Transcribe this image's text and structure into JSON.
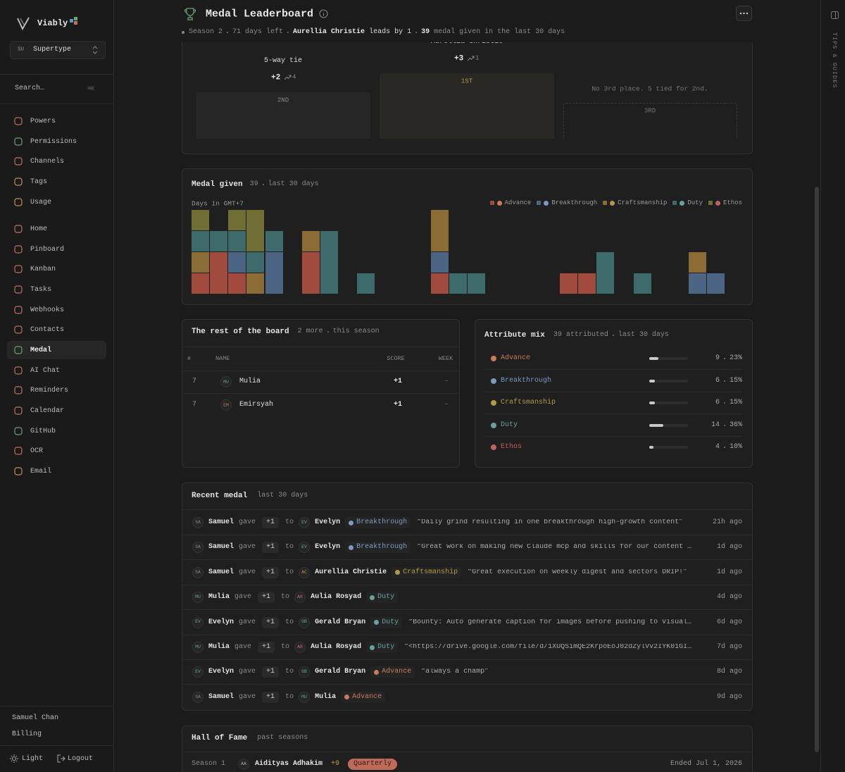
{
  "sidebar": {
    "brand": "Viably",
    "workspace": {
      "initials": "SU",
      "name": "Supertype"
    },
    "search": {
      "placeholder": "Search…",
      "shortcut": "⌘K"
    },
    "nav_primary": [
      {
        "label": "Powers",
        "icon_color": "#c0705a"
      },
      {
        "label": "Permissions",
        "icon_color": "#6aa07a"
      },
      {
        "label": "Channels",
        "icon_color": "#c0705a"
      },
      {
        "label": "Tags",
        "icon_color": "#c09050"
      },
      {
        "label": "Usage",
        "icon_color": "#c09050"
      }
    ],
    "nav_secondary": [
      {
        "label": "Home",
        "icon_color": "#c0705a"
      },
      {
        "label": "Pinboard",
        "icon_color": "#c0705a"
      },
      {
        "label": "Kanban",
        "icon_color": "#c0705a"
      },
      {
        "label": "Tasks",
        "icon_color": "#c0705a"
      },
      {
        "label": "Webhooks",
        "icon_color": "#c0705a"
      },
      {
        "label": "Contacts",
        "icon_color": "#c0705a"
      },
      {
        "label": "Medal",
        "icon_color": "#6aa07a",
        "active": true
      },
      {
        "label": "AI Chat",
        "icon_color": "#c0705a"
      },
      {
        "label": "Reminders",
        "icon_color": "#c0705a"
      },
      {
        "label": "Calendar",
        "icon_color": "#c0705a"
      },
      {
        "label": "GitHub",
        "icon_color": "#6aa07a"
      },
      {
        "label": "OCR",
        "icon_color": "#c0705a"
      },
      {
        "label": "Email",
        "icon_color": "#c09050"
      }
    ],
    "user": "Samuel Chan",
    "billing": "Billing",
    "theme": "Light",
    "logout": "Logout"
  },
  "header": {
    "title": "Medal Leaderboard",
    "season": "Season 2",
    "days_left": "71 days left",
    "leader": "Aurellia Christie",
    "lead": "leads by 1",
    "given_count": 39,
    "given_text": "medal given in the last 30 days"
  },
  "tips": "TIPS & GUIDES",
  "podium": {
    "second": {
      "name": "5-way tie",
      "score": "+2",
      "trend": 4,
      "label": "2ND"
    },
    "first": {
      "name": "Aurellia Christie",
      "score": "+3",
      "trend": 1,
      "label": "1ST"
    },
    "third": {
      "note": "No 3rd place. 5 tied for 2nd.",
      "label": "3RD"
    }
  },
  "medal_chart": {
    "type": "bar",
    "stacked": true,
    "title": "Medal given",
    "count": 39,
    "period": "last 30 days",
    "x_label": "Days in GMT+7",
    "categories": [
      null,
      null,
      null,
      null,
      null,
      null,
      null,
      null,
      null,
      null,
      null,
      null,
      null,
      null,
      null,
      null,
      null,
      null,
      null,
      null,
      null,
      null,
      null,
      null,
      null,
      null,
      null,
      null,
      null,
      null
    ],
    "series": [
      {
        "name": "Advance",
        "color": "#a14a3e",
        "values": [
          1,
          2,
          1,
          0,
          0,
          0,
          2,
          0,
          0,
          0,
          0,
          0,
          0,
          1,
          0,
          0,
          0,
          0,
          0,
          0,
          1,
          1,
          0,
          0,
          0,
          0,
          0,
          0,
          0,
          0
        ]
      },
      {
        "name": "Breakthrough",
        "color": "#4d6585",
        "values": [
          0,
          0,
          1,
          0,
          2,
          0,
          0,
          0,
          0,
          0,
          0,
          0,
          0,
          1,
          0,
          0,
          0,
          0,
          0,
          0,
          0,
          0,
          0,
          0,
          0,
          0,
          0,
          1,
          1,
          0
        ]
      },
      {
        "name": "Craftsmanship",
        "color": "#8a6c34",
        "values": [
          1,
          0,
          0,
          1,
          0,
          0,
          1,
          0,
          0,
          0,
          0,
          0,
          0,
          2,
          0,
          0,
          0,
          0,
          0,
          0,
          0,
          0,
          0,
          0,
          0,
          0,
          0,
          1,
          0,
          0
        ]
      },
      {
        "name": "Duty",
        "color": "#3d6a6a",
        "values": [
          1,
          1,
          1,
          1,
          1,
          0,
          0,
          3,
          0,
          1,
          0,
          0,
          0,
          0,
          1,
          1,
          0,
          0,
          0,
          0,
          0,
          0,
          2,
          0,
          1,
          0,
          0,
          0,
          0,
          0
        ]
      },
      {
        "name": "Ethos",
        "color": "#6f6f35",
        "values": [
          1,
          0,
          1,
          2,
          0,
          0,
          0,
          0,
          0,
          0,
          0,
          0,
          0,
          0,
          0,
          0,
          0,
          0,
          0,
          0,
          0,
          0,
          0,
          0,
          0,
          0,
          0,
          0,
          0,
          0
        ]
      }
    ]
  },
  "rest": {
    "title": "The rest of the board",
    "more": "2 more",
    "scope": "this season",
    "columns": [
      "#",
      "NAME",
      "SCORE",
      "WEEK"
    ],
    "rows": [
      {
        "rank": "7",
        "initials": "MU",
        "name": "Mulia",
        "score": "+1",
        "week": "–",
        "color": "#6aa07a"
      },
      {
        "rank": "7",
        "initials": "EM",
        "name": "Emirsyah",
        "score": "+1",
        "week": "–",
        "color": "#c0705a"
      }
    ]
  },
  "mix": {
    "title": "Attribute mix",
    "attributed": 39,
    "attributed_text": "attributed",
    "period": "last 30 days",
    "rows": [
      {
        "name": "Advance",
        "count": 9,
        "share": "23%",
        "color": "#c77b5a"
      },
      {
        "name": "Breakthrough",
        "count": 6,
        "share": "15%",
        "color": "#7a9ac0"
      },
      {
        "name": "Craftsmanship",
        "count": 6,
        "share": "15%",
        "color": "#b09a45"
      },
      {
        "name": "Duty",
        "count": 14,
        "share": "36%",
        "color": "#6aa0a0"
      },
      {
        "name": "Ethos",
        "count": 4,
        "share": "10%",
        "color": "#c06060"
      }
    ]
  },
  "recent": {
    "title": "Recent medal",
    "period": "last 30 days",
    "rows": [
      {
        "from": {
          "initials": "SA",
          "name": "Samuel",
          "color": "#888"
        },
        "action": "gave",
        "points": "+1",
        "to_word": "to",
        "to": {
          "initials": "EV",
          "name": "Evelyn",
          "color": "#6aa0a0"
        },
        "attribute": "Breakthrough",
        "quote": "“Daily grind resulting in one breakthrough high-growth content”",
        "time": "21h ago"
      },
      {
        "from": {
          "initials": "SA",
          "name": "Samuel",
          "color": "#888"
        },
        "action": "gave",
        "points": "+1",
        "to_word": "to",
        "to": {
          "initials": "EV",
          "name": "Evelyn",
          "color": "#6aa0a0"
        },
        "attribute": "Breakthrough",
        "quote": "“Great work on making new Claude mcp and skills for our content …",
        "time": "1d ago"
      },
      {
        "from": {
          "initials": "SA",
          "name": "Samuel",
          "color": "#888"
        },
        "action": "gave",
        "points": "+1",
        "to_word": "to",
        "to": {
          "initials": "AC",
          "name": "Aurellia Christie",
          "color": "#c09050"
        },
        "attribute": "Craftsmanship",
        "quote": "“Great execution on weekly digest and sectors DRIP!”",
        "time": "1d ago"
      },
      {
        "from": {
          "initials": "MU",
          "name": "Mulia",
          "color": "#6aa07a"
        },
        "action": "gave",
        "points": "+1",
        "to_word": "to",
        "to": {
          "initials": "AR",
          "name": "Aulia Rosyad",
          "color": "#c06a7a"
        },
        "attribute": "Duty",
        "time": "4d ago"
      },
      {
        "from": {
          "initials": "EV",
          "name": "Evelyn",
          "color": "#6aa0a0"
        },
        "action": "gave",
        "points": "+1",
        "to_word": "to",
        "to": {
          "initials": "GB",
          "name": "Gerald Bryan",
          "color": "#6aa07a"
        },
        "attribute": "Duty",
        "quote": "“Bounty: Auto generate caption for images before pushing to visual…",
        "time": "6d ago"
      },
      {
        "from": {
          "initials": "MU",
          "name": "Mulia",
          "color": "#6aa07a"
        },
        "action": "gave",
        "points": "+1",
        "to_word": "to",
        "to": {
          "initials": "AR",
          "name": "Aulia Rosyad",
          "color": "#c06a7a"
        },
        "attribute": "Duty",
        "quote": "“<https://drive.google.com/file/d/1XUQSimQE2KrpoEoJ02dZylVv2IYK01GI…",
        "time": "7d ago"
      },
      {
        "from": {
          "initials": "EV",
          "name": "Evelyn",
          "color": "#6aa0a0"
        },
        "action": "gave",
        "points": "+1",
        "to_word": "to",
        "to": {
          "initials": "GB",
          "name": "Gerald Bryan",
          "color": "#6aa07a"
        },
        "attribute": "Advance",
        "quote": "“always a champ”",
        "time": "8d ago"
      },
      {
        "from": {
          "initials": "SA",
          "name": "Samuel",
          "color": "#888"
        },
        "action": "gave",
        "points": "+1",
        "to_word": "to",
        "to": {
          "initials": "MU",
          "name": "Mulia",
          "color": "#6aa07a"
        },
        "attribute": "Advance",
        "time": "9d ago"
      }
    ]
  },
  "hall": {
    "title": "Hall of Fame",
    "subtitle": "past seasons",
    "rows": [
      {
        "season": "Season 1",
        "initials": "AA",
        "name": "Aidityas Adhakim",
        "score": "+9",
        "badge": "Quarterly",
        "ended": "Ended Jul 1, 2026"
      }
    ]
  }
}
